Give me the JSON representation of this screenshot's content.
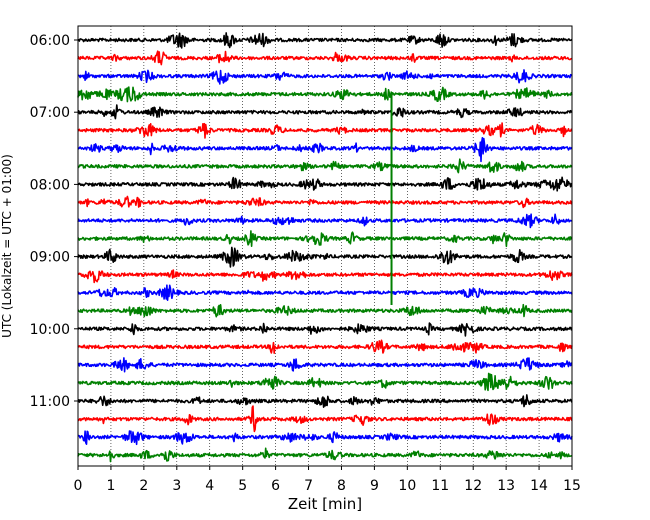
{
  "chart_data": {
    "type": "line",
    "title": "",
    "xlabel": "Zeit  [min]",
    "ylabel": "UTC (Lokalzeit = UTC + 01:00)",
    "xlim": [
      0,
      15
    ],
    "x_ticks": [
      "0",
      "1",
      "2",
      "3",
      "4",
      "5",
      "6",
      "7",
      "8",
      "9",
      "10",
      "11",
      "12",
      "13",
      "14",
      "15"
    ],
    "y_tick_labels": [
      "06:00",
      "07:00",
      "08:00",
      "09:00",
      "10:00",
      "11:00"
    ],
    "grid": "vertical dotted",
    "trace_colors": [
      "#000000",
      "#ff0000",
      "#0000ff",
      "#008000"
    ],
    "series": [
      {
        "start": "06:00",
        "color": "#000000"
      },
      {
        "start": "06:15",
        "color": "#ff0000"
      },
      {
        "start": "06:30",
        "color": "#0000ff"
      },
      {
        "start": "06:45",
        "color": "#008000"
      },
      {
        "start": "07:00",
        "color": "#000000"
      },
      {
        "start": "07:15",
        "color": "#ff0000"
      },
      {
        "start": "07:30",
        "color": "#0000ff"
      },
      {
        "start": "07:45",
        "color": "#008000"
      },
      {
        "start": "08:00",
        "color": "#000000"
      },
      {
        "start": "08:15",
        "color": "#ff0000"
      },
      {
        "start": "08:30",
        "color": "#0000ff"
      },
      {
        "start": "08:45",
        "color": "#008000"
      },
      {
        "start": "09:00",
        "color": "#000000"
      },
      {
        "start": "09:15",
        "color": "#ff0000"
      },
      {
        "start": "09:30",
        "color": "#0000ff"
      },
      {
        "start": "09:45",
        "color": "#008000"
      },
      {
        "start": "10:00",
        "color": "#000000"
      },
      {
        "start": "10:15",
        "color": "#ff0000"
      },
      {
        "start": "10:30",
        "color": "#0000ff"
      },
      {
        "start": "10:45",
        "color": "#008000"
      },
      {
        "start": "11:00",
        "color": "#000000"
      },
      {
        "start": "11:15",
        "color": "#ff0000"
      },
      {
        "start": "11:30",
        "color": "#0000ff"
      },
      {
        "start": "11:45",
        "color": "#008000"
      }
    ]
  }
}
